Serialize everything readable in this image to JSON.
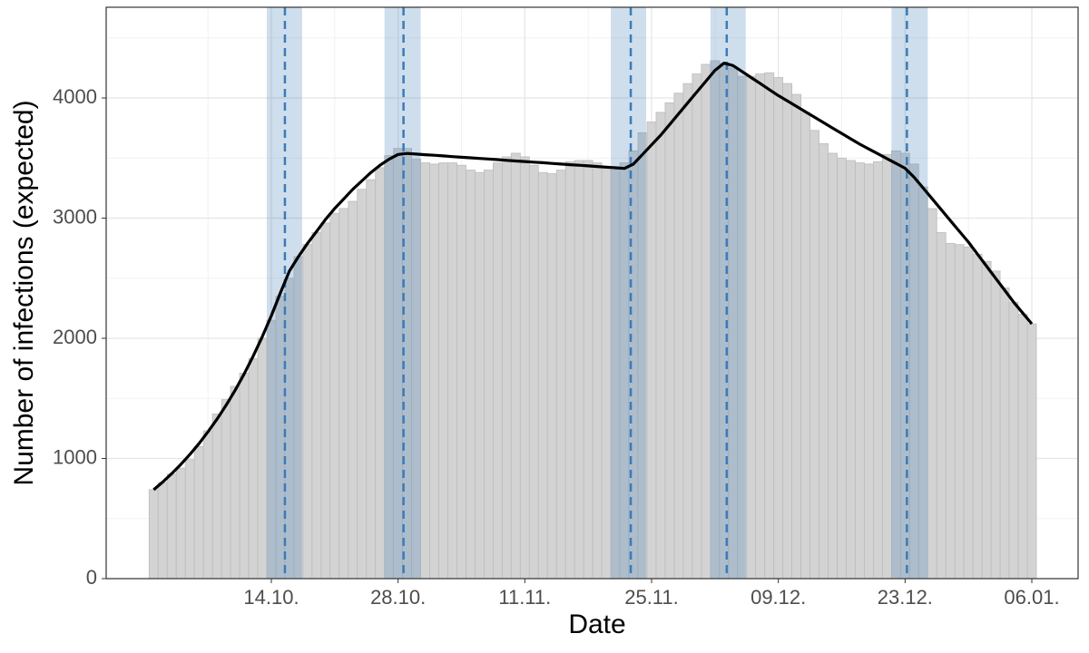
{
  "chart_data": {
    "type": "bar",
    "x_label": "Date",
    "y_label": "Number of infections (expected)",
    "categories": [
      null,
      null,
      null,
      null,
      null,
      null,
      null,
      null,
      null,
      null,
      null,
      null,
      null,
      "14.10.",
      null,
      null,
      null,
      null,
      null,
      null,
      null,
      null,
      null,
      null,
      null,
      null,
      null,
      "28.10.",
      null,
      null,
      null,
      null,
      null,
      null,
      null,
      null,
      null,
      null,
      null,
      null,
      null,
      "11.11.",
      null,
      null,
      null,
      null,
      null,
      null,
      null,
      null,
      null,
      null,
      null,
      null,
      null,
      "25.11.",
      null,
      null,
      null,
      null,
      null,
      null,
      null,
      null,
      null,
      null,
      null,
      null,
      null,
      "09.12.",
      null,
      null,
      null,
      null,
      null,
      null,
      null,
      null,
      null,
      null,
      null,
      null,
      null,
      "23.12.",
      null,
      null,
      null,
      null,
      null,
      null,
      null,
      null,
      null,
      null,
      null,
      null,
      null,
      "06.01."
    ],
    "values": [
      740,
      800,
      870,
      920,
      990,
      1100,
      1230,
      1370,
      1490,
      1600,
      1710,
      1830,
      2000,
      2150,
      2350,
      2500,
      2680,
      2780,
      2880,
      2960,
      3040,
      3080,
      3140,
      3240,
      3320,
      3420,
      3520,
      3580,
      3580,
      3490,
      3460,
      3450,
      3460,
      3460,
      3440,
      3400,
      3380,
      3400,
      3460,
      3510,
      3540,
      3510,
      3440,
      3380,
      3370,
      3400,
      3470,
      3480,
      3480,
      3460,
      3420,
      3400,
      3460,
      3560,
      3710,
      3800,
      3880,
      3960,
      4040,
      4120,
      4200,
      4280,
      4310,
      4290,
      4250,
      4180,
      4180,
      4200,
      4210,
      4170,
      4120,
      4030,
      3880,
      3730,
      3620,
      3540,
      3500,
      3480,
      3460,
      3450,
      3470,
      3530,
      3560,
      3540,
      3450,
      3260,
      3080,
      2880,
      2790,
      2780,
      2760,
      2700,
      2640,
      2560,
      2420,
      2300,
      2200,
      2120
    ],
    "color": "#d3d3d3",
    "fit": {
      "color": "#000000",
      "values": [
        740,
        804,
        874,
        950,
        1033,
        1123,
        1221,
        1327,
        1442,
        1568,
        1704,
        1852,
        2013,
        2188,
        2378,
        2560,
        2680,
        2790,
        2890,
        2990,
        3080,
        3160,
        3240,
        3310,
        3380,
        3440,
        3490,
        3530,
        3538,
        3533,
        3528,
        3523,
        3518,
        3512,
        3507,
        3502,
        3497,
        3492,
        3487,
        3481,
        3476,
        3471,
        3466,
        3461,
        3455,
        3450,
        3445,
        3440,
        3435,
        3430,
        3424,
        3419,
        3414,
        3450,
        3530,
        3610,
        3690,
        3780,
        3870,
        3960,
        4050,
        4140,
        4230,
        4290,
        4270,
        4220,
        4170,
        4120,
        4070,
        4020,
        3975,
        3930,
        3885,
        3840,
        3795,
        3750,
        3705,
        3660,
        3615,
        3575,
        3535,
        3495,
        3455,
        3415,
        3340,
        3250,
        3160,
        3070,
        2980,
        2890,
        2800,
        2700,
        2600,
        2500,
        2400,
        2300,
        2210,
        2120
      ]
    },
    "changepoints": {
      "color": "#3c7ab8",
      "x": [
        14.5,
        27.6,
        52.7,
        63.3,
        83.2
      ],
      "lo": [
        12.5,
        25.5,
        50.5,
        61.5,
        81.5
      ],
      "hi": [
        16.4,
        29.5,
        54.4,
        65.4,
        85.5
      ]
    },
    "ylim": [
      0,
      4755
    ],
    "yticks": [
      0,
      1000,
      2000,
      3000,
      4000
    ],
    "grid": true
  }
}
